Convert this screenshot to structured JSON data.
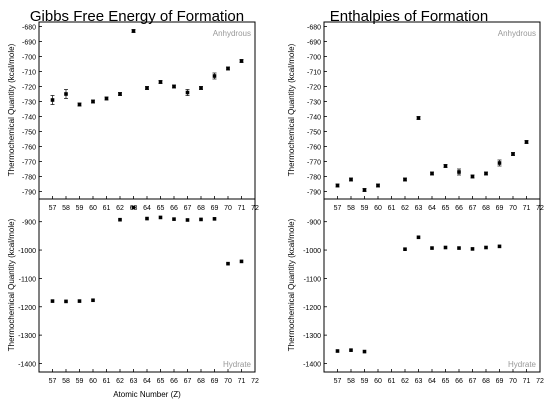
{
  "figure": {
    "x_axis_label": "Atomic Number (Z)",
    "y_axis_label": "Thermochemical Quantity (kcal/mole)"
  },
  "chart_data": [
    {
      "id": "gibbs-anhydrous",
      "type": "scatter",
      "title": "Gibbs Free Energy of Formation",
      "annotation": "Anhydrous",
      "xlabel": "",
      "ylabel": "Thermochemical Quantity (kcal/mole)",
      "xlim": [
        56,
        72
      ],
      "ylim": [
        -795,
        -677
      ],
      "xticks": [
        57,
        58,
        59,
        60,
        61,
        62,
        63,
        64,
        65,
        66,
        67,
        68,
        69,
        70,
        71,
        72
      ],
      "yticks": [
        -790,
        -780,
        -770,
        -760,
        -750,
        -740,
        -730,
        -720,
        -710,
        -700,
        -690,
        -680
      ],
      "x": [
        57,
        58,
        59,
        60,
        61,
        62,
        63,
        64,
        65,
        66,
        67,
        68,
        69,
        70,
        71
      ],
      "y": [
        -729,
        -725,
        -732,
        -730,
        -728,
        -725,
        -683,
        -721,
        -717,
        -720,
        -724,
        -721,
        -713,
        -708,
        -703
      ],
      "err": [
        3,
        3,
        1,
        1,
        1,
        1,
        1,
        1,
        1,
        1,
        2,
        1,
        2,
        1,
        1
      ]
    },
    {
      "id": "gibbs-hydrate",
      "type": "scatter",
      "title": "",
      "annotation": "Hydrate",
      "xlabel": "Atomic Number (Z)",
      "ylabel": "Thermochemical Quantity (kcal/mole)",
      "xlim": [
        56,
        72
      ],
      "ylim": [
        -1430,
        -820
      ],
      "xticks": [
        57,
        58,
        59,
        60,
        61,
        62,
        63,
        64,
        65,
        66,
        67,
        68,
        69,
        70,
        71,
        72
      ],
      "yticks": [
        -1400,
        -1300,
        -1200,
        -1100,
        -1000,
        -900
      ],
      "x": [
        57,
        58,
        59,
        60,
        62,
        63,
        64,
        65,
        66,
        67,
        68,
        69,
        70,
        71
      ],
      "y": [
        -1180,
        -1181,
        -1180,
        -1177,
        -893,
        -850,
        -889,
        -885,
        -891,
        -894,
        -892,
        -890,
        -1048,
        -1040
      ],
      "err": [
        0,
        0,
        0,
        0,
        0,
        0,
        0,
        0,
        0,
        0,
        0,
        0,
        0,
        0
      ]
    },
    {
      "id": "enthalpy-anhydrous",
      "type": "scatter",
      "title": "Enthalpies of Formation",
      "annotation": "Anhydrous",
      "xlabel": "",
      "ylabel": "",
      "xlim": [
        56,
        72
      ],
      "ylim": [
        -795,
        -677
      ],
      "xticks": [
        57,
        58,
        59,
        60,
        61,
        62,
        63,
        64,
        65,
        66,
        67,
        68,
        69,
        70,
        71,
        72
      ],
      "yticks": [
        -790,
        -780,
        -770,
        -760,
        -750,
        -740,
        -730,
        -720,
        -710,
        -700,
        -690,
        -680
      ],
      "x": [
        57,
        58,
        59,
        60,
        62,
        63,
        64,
        65,
        66,
        67,
        68,
        69,
        70,
        71
      ],
      "y": [
        -786,
        -782,
        -789,
        -786,
        -782,
        -741,
        -778,
        -773,
        -777,
        -780,
        -778,
        -771,
        -765,
        -757
      ],
      "err": [
        1,
        1,
        1,
        1,
        1,
        1,
        1,
        1,
        2,
        1,
        1,
        2,
        1,
        1
      ]
    },
    {
      "id": "enthalpy-hydrate",
      "type": "scatter",
      "title": "",
      "annotation": "Hydrate",
      "xlabel": "",
      "ylabel": "",
      "xlim": [
        56,
        72
      ],
      "ylim": [
        -1430,
        -820
      ],
      "xticks": [
        57,
        58,
        59,
        60,
        61,
        62,
        63,
        64,
        65,
        66,
        67,
        68,
        69,
        70,
        71,
        72
      ],
      "yticks": [
        -1400,
        -1300,
        -1200,
        -1100,
        -1000,
        -900
      ],
      "x": [
        57,
        58,
        59,
        62,
        63,
        64,
        65,
        66,
        67,
        68,
        69
      ],
      "y": [
        -1356,
        -1353,
        -1358,
        -997,
        -955,
        -993,
        -991,
        -993,
        -996,
        -991,
        -987
      ],
      "err": [
        0,
        0,
        0,
        0,
        0,
        0,
        0,
        0,
        0,
        0,
        0
      ]
    }
  ]
}
